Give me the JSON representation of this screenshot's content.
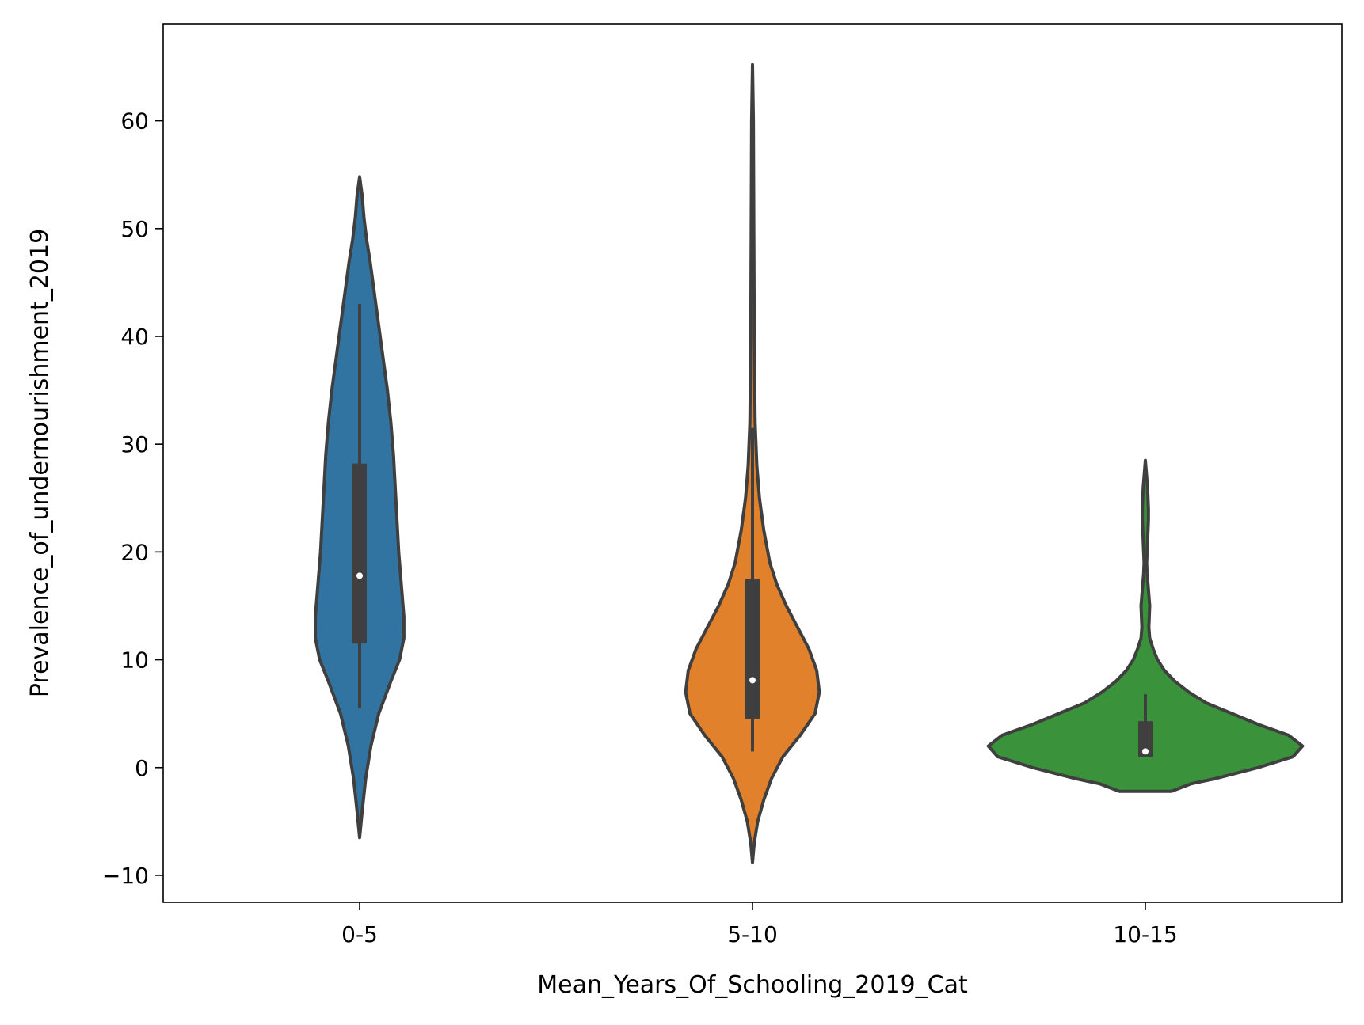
{
  "chart_data": {
    "type": "violin",
    "xlabel": "Mean_Years_Of_Schooling_2019_Cat",
    "ylabel": "Prevalence_of_undernourishment_2019",
    "categories": [
      "0-5",
      "5-10",
      "10-15"
    ],
    "ylim": [
      -12.5,
      69
    ],
    "yticks": [
      -10,
      0,
      10,
      20,
      30,
      40,
      50,
      60
    ],
    "ytick_labels": [
      "−10",
      "0",
      "10",
      "20",
      "30",
      "40",
      "50",
      "60"
    ],
    "grid": false,
    "legend": "none",
    "series": [
      {
        "category": "0-5",
        "color": "#3274a1",
        "min": 5.5,
        "q1": 11.5,
        "median": 17.8,
        "q3": 28.2,
        "max": 43.0,
        "kde_range": [
          -6.5,
          54.8
        ],
        "density_profile": [
          [
            -6.5,
            0.0
          ],
          [
            -4.0,
            0.03
          ],
          [
            -1.0,
            0.07
          ],
          [
            2.0,
            0.13
          ],
          [
            5.0,
            0.22
          ],
          [
            8.0,
            0.36
          ],
          [
            10.0,
            0.46
          ],
          [
            12.0,
            0.51
          ],
          [
            14.0,
            0.51
          ],
          [
            17.0,
            0.48
          ],
          [
            20.0,
            0.45
          ],
          [
            23.0,
            0.43
          ],
          [
            26.0,
            0.41
          ],
          [
            29.0,
            0.39
          ],
          [
            32.0,
            0.36
          ],
          [
            35.0,
            0.32
          ],
          [
            38.0,
            0.27
          ],
          [
            41.0,
            0.22
          ],
          [
            44.0,
            0.17
          ],
          [
            47.0,
            0.12
          ],
          [
            49.0,
            0.08
          ],
          [
            51.0,
            0.05
          ],
          [
            53.0,
            0.03
          ],
          [
            54.8,
            0.0
          ]
        ]
      },
      {
        "category": "5-10",
        "color": "#e1812c",
        "min": 1.5,
        "q1": 4.5,
        "median": 8.1,
        "q3": 17.5,
        "max": 31.5,
        "kde_range": [
          -8.8,
          65.2
        ],
        "density_profile": [
          [
            -8.8,
            0.0
          ],
          [
            -7.0,
            0.02
          ],
          [
            -5.0,
            0.06
          ],
          [
            -3.0,
            0.13
          ],
          [
            -1.0,
            0.22
          ],
          [
            1.0,
            0.35
          ],
          [
            3.0,
            0.55
          ],
          [
            5.0,
            0.72
          ],
          [
            7.0,
            0.77
          ],
          [
            9.0,
            0.74
          ],
          [
            11.0,
            0.65
          ],
          [
            13.0,
            0.52
          ],
          [
            15.0,
            0.39
          ],
          [
            17.0,
            0.28
          ],
          [
            19.0,
            0.2
          ],
          [
            22.0,
            0.13
          ],
          [
            25.0,
            0.08
          ],
          [
            28.0,
            0.05
          ],
          [
            32.0,
            0.03
          ],
          [
            40.0,
            0.02
          ],
          [
            50.0,
            0.015
          ],
          [
            60.0,
            0.01
          ],
          [
            65.2,
            0.0
          ]
        ]
      },
      {
        "category": "10-15",
        "color": "#3a923a",
        "min": 1.0,
        "q1": 1.0,
        "median": 1.5,
        "q3": 4.3,
        "max": 6.8,
        "kde_range": [
          -2.2,
          28.5
        ],
        "density_profile": [
          [
            -2.2,
            0.3
          ],
          [
            -1.5,
            0.53
          ],
          [
            -1.0,
            0.82
          ],
          [
            0.0,
            1.3
          ],
          [
            1.0,
            1.7
          ],
          [
            2.0,
            1.81
          ],
          [
            3.0,
            1.65
          ],
          [
            4.0,
            1.3
          ],
          [
            5.0,
            1.0
          ],
          [
            6.0,
            0.7
          ],
          [
            7.0,
            0.5
          ],
          [
            8.0,
            0.34
          ],
          [
            9.0,
            0.22
          ],
          [
            10.0,
            0.14
          ],
          [
            11.0,
            0.09
          ],
          [
            12.0,
            0.05
          ],
          [
            13.0,
            0.04
          ],
          [
            14.0,
            0.045
          ],
          [
            15.0,
            0.05
          ],
          [
            16.0,
            0.04
          ],
          [
            17.0,
            0.03
          ],
          [
            18.0,
            0.02
          ],
          [
            19.0,
            0.015
          ],
          [
            20.0,
            0.02
          ],
          [
            21.0,
            0.025
          ],
          [
            22.0,
            0.03
          ],
          [
            23.0,
            0.035
          ],
          [
            24.0,
            0.035
          ],
          [
            25.0,
            0.03
          ],
          [
            26.0,
            0.025
          ],
          [
            27.0,
            0.015
          ],
          [
            28.5,
            0.0
          ]
        ]
      }
    ]
  }
}
